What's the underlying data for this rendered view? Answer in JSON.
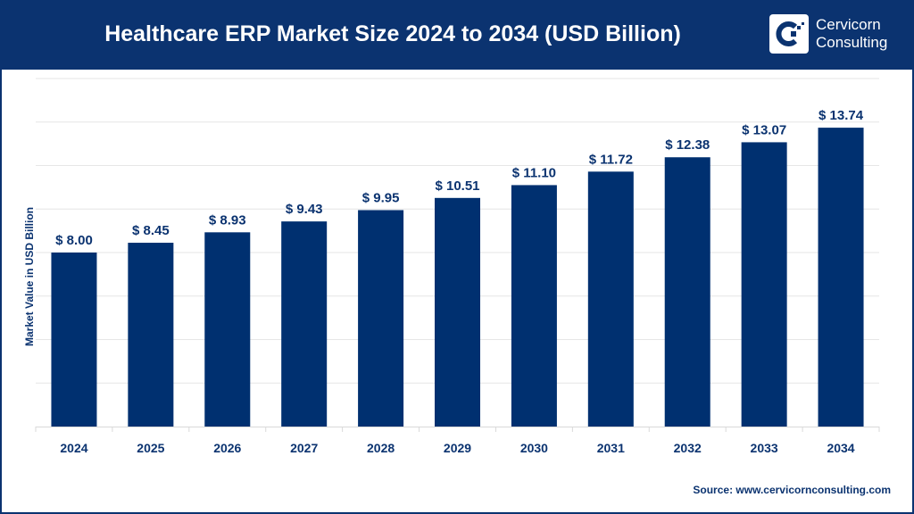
{
  "header": {
    "title": "Healthcare ERP Market Size 2024 to 2034 (USD Billion)",
    "logo_text": [
      "Cervicorn",
      "Consulting"
    ]
  },
  "source": "Source: www.cervicornconsulting.com",
  "colors": {
    "bar": "#003070",
    "header": "#0b3370",
    "grid": "#e6e6e6"
  },
  "chart_data": {
    "type": "bar",
    "title": "Healthcare ERP Market Size 2024 to 2034 (USD Billion)",
    "xlabel": "",
    "ylabel": "Market Value in USD Billion",
    "categories": [
      "2024",
      "2025",
      "2026",
      "2027",
      "2028",
      "2029",
      "2030",
      "2031",
      "2032",
      "2033",
      "2034"
    ],
    "values": [
      8.0,
      8.45,
      8.93,
      9.43,
      9.95,
      10.51,
      11.1,
      11.72,
      12.38,
      13.07,
      13.74
    ],
    "data_labels": [
      "$ 8.00",
      "$ 8.45",
      "$ 8.93",
      "$ 9.43",
      "$ 9.95",
      "$ 10.51",
      "$ 11.10",
      "$ 11.72",
      "$ 12.38",
      "$ 13.07",
      "$ 13.74"
    ],
    "ylim": [
      0,
      16
    ],
    "y_grid_step": 2,
    "grid": true,
    "y_tick_labels_shown": false
  }
}
